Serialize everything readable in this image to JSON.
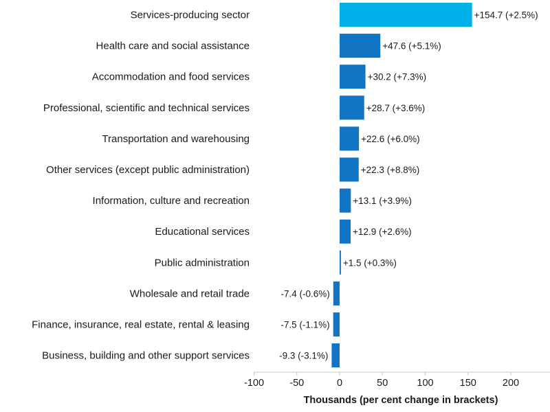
{
  "chart_data": {
    "type": "bar",
    "orientation": "horizontal",
    "title": "",
    "xlabel": "Thousands (per cent change in brackets)",
    "ylabel": "",
    "xlim": [
      -100,
      250
    ],
    "xticks": [
      -100,
      -50,
      0,
      50,
      100,
      150,
      200
    ],
    "xtick_labels": [
      "-100",
      "-50",
      "0",
      "50",
      "100",
      "150",
      "200"
    ],
    "categories": [
      "Services-producing sector",
      "Health care and social assistance",
      "Accommodation and food services",
      "Professional, scientific and technical services",
      "Transportation and warehousing",
      "Other services (except public administration)",
      "Information, culture and recreation",
      "Educational services",
      "Public administration",
      "Wholesale and retail trade",
      "Finance, insurance, real estate, rental & leasing",
      "Business, building and other support services"
    ],
    "values": [
      154.7,
      47.6,
      30.2,
      28.7,
      22.6,
      22.3,
      13.1,
      12.9,
      1.5,
      -7.4,
      -7.5,
      -9.3
    ],
    "value_labels": [
      "+154.7 (+2.5%)",
      "+47.6 (+5.1%)",
      "+30.2 (+7.3%)",
      "+28.7 (+3.6%)",
      "+22.6 (+6.0%)",
      "+22.3 (+8.8%)",
      "+13.1 (+3.9%)",
      "+12.9 (+2.6%)",
      "+1.5 (+0.3%)",
      "-7.4 (-0.6%)",
      "-7.5 (-1.1%)",
      "-9.3 (-3.1%)"
    ],
    "colors": {
      "total": "#00b0e8",
      "sector": "#1174c4"
    },
    "highlight_index": 0
  }
}
